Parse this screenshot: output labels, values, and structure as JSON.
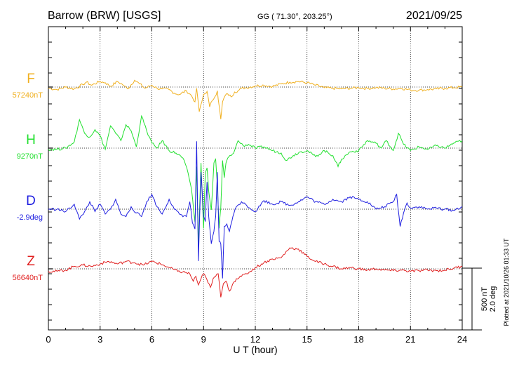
{
  "header": {
    "station": "Barrow (BRW)  [USGS]",
    "coords": "GG ( 71.30°, 203.25°)",
    "date": "2021/09/25"
  },
  "plotted_note": "Plotted at 2021/10/26 01:33 UT",
  "scale_labels": [
    "500 nT",
    "2.0 deg"
  ],
  "chart_data": {
    "type": "line",
    "xlabel": "U T (hour)",
    "xlim": [
      0,
      24
    ],
    "xticks": [
      "0",
      "3",
      "6",
      "9",
      "12",
      "15",
      "18",
      "21",
      "24"
    ],
    "grid": "dotted vertical lines every 3 hours",
    "series": [
      {
        "name": "F",
        "baseline_label": "57240nT",
        "color": "#f0b020",
        "x": [
          0,
          0.5,
          1,
          1.5,
          2,
          2.2,
          2.5,
          3,
          3.3,
          3.6,
          4,
          4.3,
          4.6,
          5,
          5.3,
          5.6,
          6,
          6.3,
          6.6,
          7,
          7.3,
          7.6,
          8,
          8.3,
          8.5,
          8.6,
          8.75,
          8.9,
          9,
          9.1,
          9.2,
          9.35,
          9.5,
          9.65,
          9.8,
          9.9,
          10,
          10.1,
          10.25,
          10.4,
          10.6,
          10.8,
          11,
          11.2,
          11.5,
          12,
          12.5,
          13,
          13.5,
          14,
          14.5,
          15,
          15.5,
          16,
          16.5,
          17,
          17.5,
          18,
          18.5,
          19,
          19.5,
          20,
          20.5,
          21,
          21.5,
          22,
          22.5,
          23,
          23.5,
          24
        ],
        "values": [
          -10,
          -20,
          0,
          -15,
          20,
          40,
          15,
          45,
          35,
          5,
          45,
          20,
          -15,
          55,
          25,
          -10,
          15,
          -10,
          -15,
          -20,
          -50,
          -60,
          -30,
          -70,
          -120,
          -10,
          -200,
          -120,
          -60,
          -50,
          -35,
          -160,
          -110,
          -80,
          -30,
          -150,
          -260,
          -120,
          -70,
          -55,
          -80,
          -40,
          -30,
          -10,
          -5,
          10,
          15,
          5,
          25,
          40,
          45,
          35,
          15,
          -5,
          -10,
          -15,
          -10,
          -5,
          -12,
          -5,
          -10,
          -15,
          -10,
          -25,
          -25,
          -20,
          -15,
          -10,
          -5,
          0
        ]
      },
      {
        "name": "H",
        "baseline_label": "9270nT",
        "color": "#22e02f",
        "x": [
          0,
          0.5,
          1,
          1.5,
          1.8,
          2.1,
          2.4,
          2.7,
          3,
          3.3,
          3.6,
          3.9,
          4.2,
          4.5,
          4.8,
          5.1,
          5.4,
          5.7,
          6,
          6.3,
          6.6,
          7,
          7.4,
          7.8,
          8.1,
          8.3,
          8.5,
          8.6,
          8.7,
          8.85,
          9,
          9.1,
          9.2,
          9.3,
          9.45,
          9.6,
          9.7,
          9.8,
          9.9,
          10,
          10.1,
          10.2,
          10.3,
          10.4,
          10.6,
          10.8,
          11,
          11.3,
          11.6,
          12,
          12.5,
          13,
          13.5,
          13.8,
          14.2,
          14.6,
          15,
          15.5,
          16,
          16.5,
          16.8,
          17,
          17.5,
          18,
          18.5,
          19,
          19.3,
          19.6,
          20,
          20.3,
          20.6,
          21,
          21.5,
          22,
          22.5,
          23,
          23.5,
          24
        ],
        "values": [
          -10,
          -10,
          0,
          50,
          230,
          120,
          90,
          150,
          100,
          -10,
          180,
          120,
          60,
          190,
          140,
          10,
          260,
          140,
          40,
          0,
          60,
          -20,
          -40,
          -80,
          -200,
          -330,
          -600,
          -150,
          -800,
          -120,
          -650,
          -200,
          -160,
          -350,
          -500,
          -120,
          -90,
          -300,
          -650,
          -480,
          -100,
          -240,
          -120,
          -80,
          -60,
          -20,
          60,
          20,
          30,
          0,
          10,
          -20,
          -40,
          -100,
          -60,
          -30,
          -20,
          -70,
          -20,
          -60,
          -150,
          -90,
          -30,
          -20,
          60,
          40,
          0,
          60,
          -20,
          120,
          30,
          -20,
          10,
          -10,
          20,
          0,
          40,
          60
        ]
      },
      {
        "name": "D",
        "baseline_label": "-2.9deg",
        "color": "#1f1fe0",
        "x": [
          0,
          0.5,
          1,
          1.5,
          1.8,
          2.1,
          2.4,
          2.7,
          3,
          3.3,
          3.6,
          3.9,
          4.2,
          4.5,
          4.8,
          5.1,
          5.4,
          5.7,
          6,
          6.3,
          6.6,
          7,
          7.3,
          7.6,
          8,
          8.2,
          8.35,
          8.5,
          8.6,
          8.7,
          8.85,
          9,
          9.1,
          9.2,
          9.3,
          9.45,
          9.6,
          9.7,
          9.8,
          9.9,
          10,
          10.1,
          10.2,
          10.35,
          10.5,
          10.7,
          10.9,
          11.2,
          11.5,
          12,
          12.5,
          13,
          13.5,
          14,
          14.5,
          15,
          15.5,
          16,
          16.5,
          17,
          17.5,
          18,
          18.5,
          19,
          19.5,
          20,
          20.2,
          20.4,
          20.6,
          20.8,
          21,
          21.5,
          22,
          22.5,
          23,
          23.5,
          24
        ],
        "values": [
          0,
          0,
          -20,
          40,
          -80,
          -20,
          60,
          -20,
          40,
          -40,
          0,
          80,
          -40,
          -60,
          20,
          -30,
          -60,
          60,
          120,
          20,
          -40,
          80,
          0,
          -40,
          -60,
          60,
          -110,
          -160,
          550,
          -420,
          300,
          -60,
          -100,
          220,
          -60,
          -280,
          -180,
          -60,
          300,
          -260,
          -280,
          -560,
          -140,
          -120,
          -180,
          -60,
          20,
          60,
          30,
          -20,
          70,
          40,
          60,
          30,
          60,
          100,
          60,
          40,
          80,
          60,
          100,
          80,
          60,
          0,
          20,
          60,
          120,
          -140,
          -30,
          50,
          10,
          20,
          0,
          10,
          0,
          -10,
          20
        ]
      },
      {
        "name": "Z",
        "baseline_label": "56640nT",
        "color": "#e02020",
        "x": [
          0,
          0.5,
          1,
          1.5,
          2,
          2.5,
          3,
          3.5,
          4,
          4.5,
          5,
          5.5,
          6,
          6.5,
          7,
          7.5,
          8,
          8.2,
          8.4,
          8.55,
          8.7,
          8.85,
          9,
          9.1,
          9.25,
          9.4,
          9.55,
          9.7,
          9.85,
          10,
          10.15,
          10.3,
          10.5,
          10.7,
          10.9,
          11.2,
          11.5,
          12,
          12.5,
          13,
          13.5,
          14,
          14.5,
          15,
          15.5,
          16,
          16.5,
          17,
          17.5,
          18,
          18.5,
          19,
          19.5,
          20,
          20.5,
          21,
          21.5,
          22,
          22.5,
          23,
          23.5,
          24
        ],
        "values": [
          -20,
          -20,
          -10,
          20,
          30,
          20,
          40,
          60,
          40,
          60,
          50,
          30,
          60,
          40,
          10,
          -20,
          -30,
          -40,
          -100,
          -60,
          -130,
          -80,
          -40,
          -60,
          -110,
          -150,
          -80,
          -60,
          -40,
          -230,
          -120,
          -100,
          -180,
          -120,
          -80,
          -60,
          -40,
          10,
          50,
          80,
          90,
          170,
          160,
          100,
          60,
          40,
          20,
          0,
          10,
          0,
          -10,
          0,
          -10,
          -15,
          -10,
          -20,
          -15,
          -10,
          -15,
          -10,
          5,
          20
        ]
      }
    ]
  }
}
